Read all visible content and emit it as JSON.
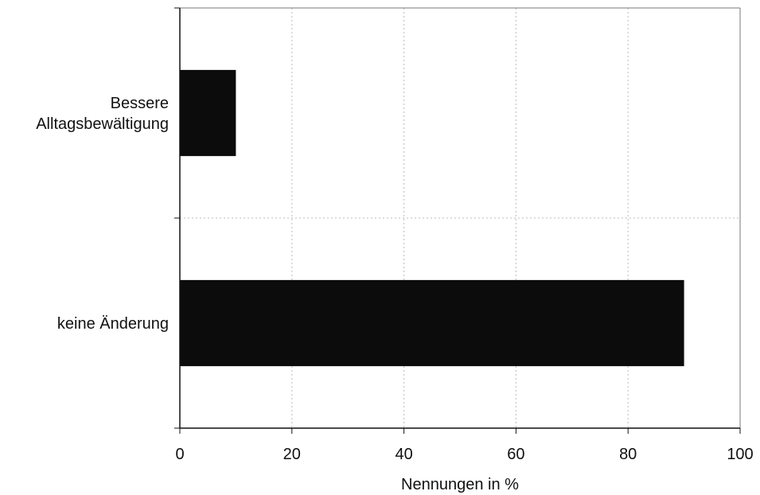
{
  "chart_data": {
    "type": "bar",
    "orientation": "horizontal",
    "categories": [
      "Bessere Alltagsbewältigung",
      "keine Änderung"
    ],
    "category_label_lines": [
      [
        "Bessere",
        "Alltagsbewältigung"
      ],
      [
        "keine Änderung"
      ]
    ],
    "values": [
      10,
      90
    ],
    "xlabel": "Nennungen in %",
    "ylabel": "",
    "xlim": [
      0,
      100
    ],
    "xticks": [
      0,
      20,
      40,
      60,
      80,
      100
    ],
    "xtick_labels": [
      "0",
      "20",
      "40",
      "60",
      "80",
      "100"
    ],
    "grid": true,
    "legend": "none",
    "bar_color": "#0c0c0c"
  }
}
